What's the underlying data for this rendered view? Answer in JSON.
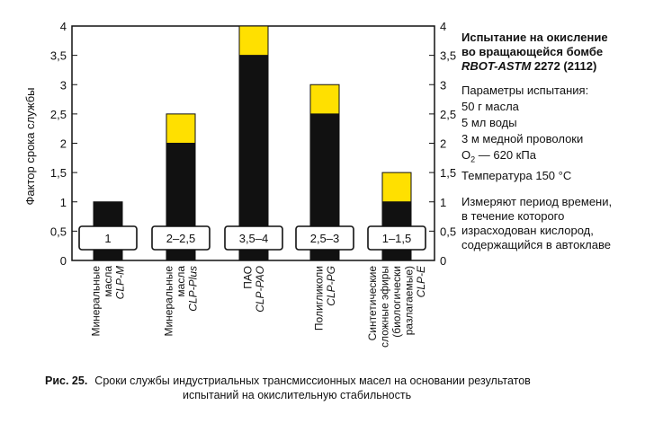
{
  "chart_data": {
    "type": "bar",
    "ylabel": "Фактор срока службы",
    "ylim": [
      0,
      4
    ],
    "yticks": [
      "0",
      "0,5",
      "1",
      "1,5",
      "2",
      "2,5",
      "3",
      "3,5",
      "4"
    ],
    "yticks_values": [
      0,
      0.5,
      1,
      1.5,
      2,
      2.5,
      3,
      3.5,
      4
    ],
    "categories": [
      {
        "lines": [
          "Минеральные",
          "масла"
        ],
        "code": "CLP-M"
      },
      {
        "lines": [
          "Минеральные",
          "масла"
        ],
        "code": "CLP-Plus"
      },
      {
        "lines": [
          "ПАО"
        ],
        "code": "CLP-PAO"
      },
      {
        "lines": [
          "Полигликоли"
        ],
        "code": "CLP-PG"
      },
      {
        "lines": [
          "Синтетические",
          "сложные эфиры",
          "(биологически",
          "разлагаемые)"
        ],
        "code": "CLP-E"
      }
    ],
    "series": [
      {
        "values": [
          1,
          2,
          3.5,
          2.5,
          1
        ],
        "color": "#111111"
      },
      {
        "values": [
          0,
          0.5,
          0.5,
          0.5,
          0.5
        ],
        "color": "#ffe000"
      }
    ],
    "box_labels": [
      "1",
      "2–2,5",
      "3,5–4",
      "2,5–3",
      "1–1,5"
    ],
    "grid": false
  },
  "side": {
    "title_lines": [
      "Испытание на окисление",
      "во вращающейся бомбе"
    ],
    "title_code": "RBOT-ASTM",
    "title_code_rest": " 2272 (2112)",
    "params_header": "Параметры испытания:",
    "params": [
      "50 г масла",
      "5 мл воды",
      "3 м медной проволоки"
    ],
    "o2_label": "O",
    "o2_sub": "2",
    "o2_value": " — 620 кПа",
    "temperature": "Температура 150 °С",
    "desc_lines": [
      "Измеряют период времени,",
      "в течение которого",
      "израсходован кислород,",
      "содержащийся в автоклаве"
    ]
  },
  "caption": {
    "number": "Рис. 25.",
    "line1": "Сроки службы индустриальных трансмиссионных масел на основании результатов",
    "line2": "испытаний на окислительную стабильность"
  }
}
